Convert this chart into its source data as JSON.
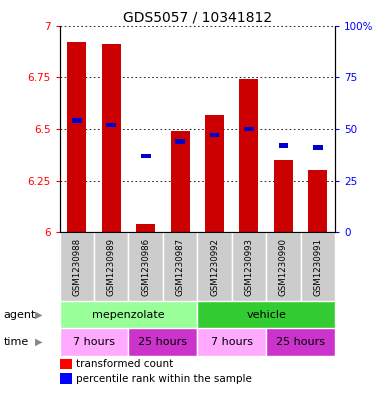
{
  "title": "GDS5057 / 10341812",
  "samples": [
    "GSM1230988",
    "GSM1230989",
    "GSM1230986",
    "GSM1230987",
    "GSM1230992",
    "GSM1230993",
    "GSM1230990",
    "GSM1230991"
  ],
  "bar_tops": [
    6.92,
    6.91,
    6.04,
    6.49,
    6.57,
    6.74,
    6.35,
    6.3
  ],
  "bar_bottoms": [
    6.0,
    6.0,
    6.0,
    6.0,
    6.0,
    6.0,
    6.0,
    6.0
  ],
  "percentile_values": [
    6.54,
    6.52,
    6.37,
    6.44,
    6.47,
    6.5,
    6.42,
    6.41
  ],
  "ylim": [
    6.0,
    7.0
  ],
  "yticks": [
    6.0,
    6.25,
    6.5,
    6.75,
    7.0
  ],
  "ytick_labels": [
    "6",
    "6.25",
    "6.5",
    "6.75",
    "7"
  ],
  "y2ticks": [
    0,
    25,
    50,
    75,
    100
  ],
  "y2tick_labels": [
    "0",
    "25",
    "50",
    "75",
    "100%"
  ],
  "bar_color": "#cc0000",
  "percentile_color": "#0000cc",
  "sample_bg_color": "#cccccc",
  "agent_row": [
    {
      "label": "mepenzolate",
      "start": 0,
      "end": 4,
      "color": "#99ff99"
    },
    {
      "label": "vehicle",
      "start": 4,
      "end": 8,
      "color": "#33cc33"
    }
  ],
  "time_row": [
    {
      "label": "7 hours",
      "start": 0,
      "end": 2,
      "color": "#ffaaff"
    },
    {
      "label": "25 hours",
      "start": 2,
      "end": 4,
      "color": "#cc33cc"
    },
    {
      "label": "7 hours",
      "start": 4,
      "end": 6,
      "color": "#ffaaff"
    },
    {
      "label": "25 hours",
      "start": 6,
      "end": 8,
      "color": "#cc33cc"
    }
  ]
}
